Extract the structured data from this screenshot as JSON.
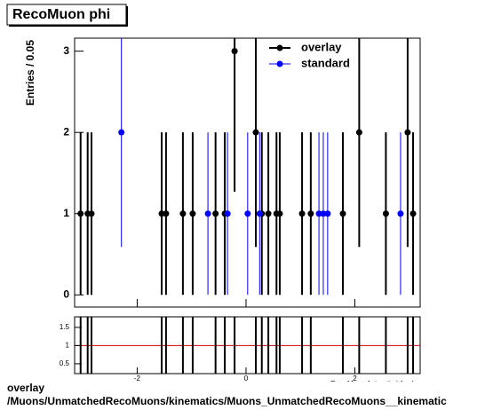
{
  "chart_data": [
    {
      "type": "errorbar",
      "title": "RecoMuon phi",
      "y_label": "Entries / 0.05",
      "xlim": [
        -3.15,
        3.2
      ],
      "ylim": [
        -0.15,
        3.16
      ],
      "yticks": [
        0,
        1,
        2,
        3
      ],
      "legend": "top-right",
      "series": [
        {
          "name": "overlay",
          "color": "#000000",
          "x": [
            -3.04,
            -2.91,
            -2.84,
            -1.55,
            -1.47,
            -1.16,
            -0.98,
            -0.56,
            -0.39,
            -0.21,
            0.18,
            0.29,
            0.41,
            0.56,
            0.62,
            1.03,
            1.19,
            1.78,
            2.08,
            2.57,
            2.97,
            3.07
          ],
          "values": [
            1,
            1,
            1,
            1,
            1,
            1,
            1,
            1,
            1,
            3,
            2,
            1,
            1,
            1,
            1,
            1,
            1,
            1,
            2,
            1,
            2,
            1
          ],
          "errors": [
            1,
            1,
            1,
            1,
            1,
            1,
            1,
            1,
            1,
            1.73,
            1.41,
            1,
            1,
            1,
            1,
            1,
            1,
            1,
            1.41,
            1,
            1.41,
            1
          ]
        },
        {
          "name": "standard",
          "color": "#0000ff",
          "x": [
            -2.29,
            -0.7,
            -0.34,
            0.03,
            0.25,
            1.34,
            1.42,
            1.5,
            2.84
          ],
          "values": [
            2,
            1,
            1,
            1,
            1,
            1,
            1,
            1,
            1
          ],
          "errors": [
            1.41,
            1,
            1,
            1,
            1,
            1,
            1,
            1,
            1
          ]
        }
      ]
    },
    {
      "type": "ratio",
      "x_label": "RecoMuon Azimuthal Angle",
      "xlim": [
        -3.15,
        3.2
      ],
      "ylim": [
        0.23,
        1.79
      ],
      "xticks": [
        -2,
        0,
        2
      ],
      "yticks": [
        0.5,
        1,
        1.5
      ],
      "reference": 1,
      "reference_color": "#cc0000"
    }
  ],
  "footer": [
    "overlay",
    "/Muons/UnmatchedRecoMuons/kinematics/Muons_UnmatchedRecoMuons__kinematic"
  ]
}
